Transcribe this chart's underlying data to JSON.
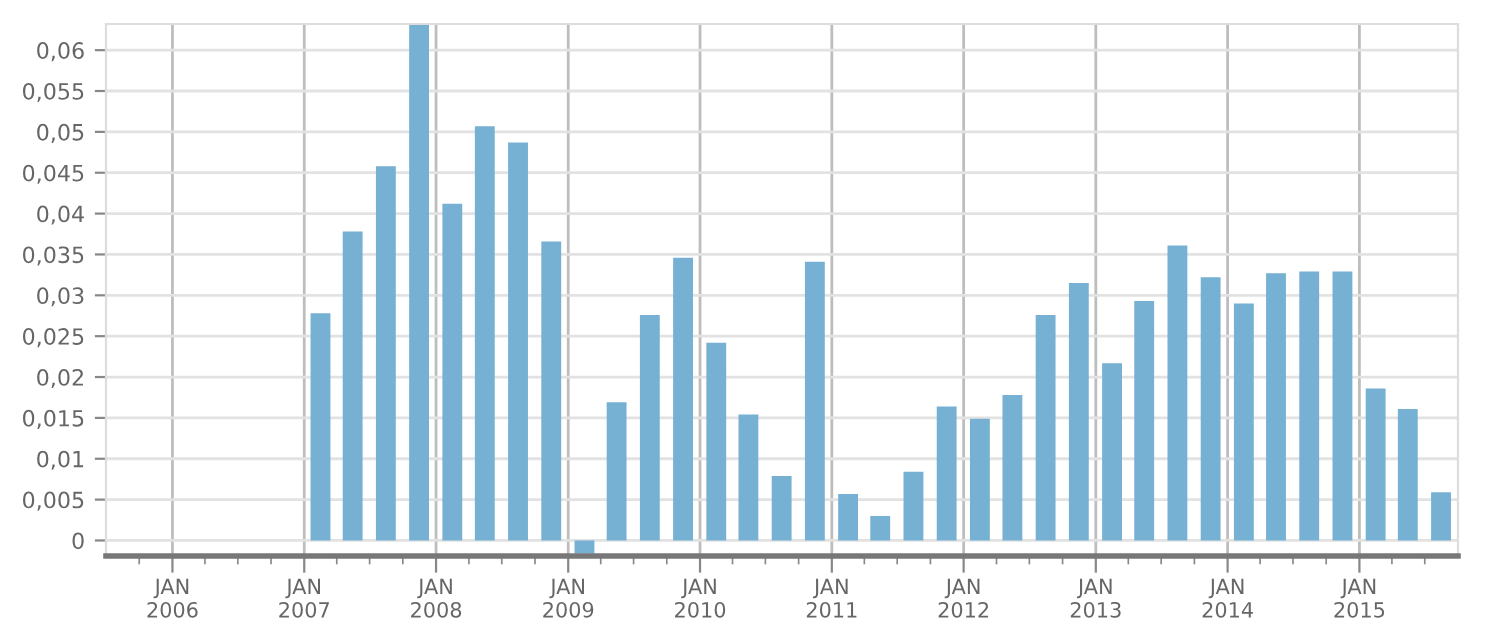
{
  "chart_data": {
    "type": "bar",
    "x": [
      "2007-02-15",
      "2007-05-15",
      "2007-08-15",
      "2007-11-15",
      "2008-02-15",
      "2008-05-15",
      "2008-08-15",
      "2008-11-15",
      "2009-02-15",
      "2009-05-15",
      "2009-08-15",
      "2009-11-15",
      "2010-02-15",
      "2010-05-15",
      "2010-08-15",
      "2010-11-15",
      "2011-02-15",
      "2011-05-15",
      "2011-08-15",
      "2011-11-15",
      "2012-02-15",
      "2012-05-15",
      "2012-08-15",
      "2012-11-15",
      "2013-02-15",
      "2013-05-15",
      "2013-08-15",
      "2013-11-15",
      "2014-02-15",
      "2014-05-15",
      "2014-08-15",
      "2014-11-15",
      "2015-02-15",
      "2015-05-15",
      "2015-08-15"
    ],
    "values": [
      0.0278,
      0.0378,
      0.0458,
      0.0631,
      0.0412,
      0.0507,
      0.0487,
      0.0366,
      -0.0016,
      0.0169,
      0.0276,
      0.0346,
      0.0242,
      0.0154,
      0.0079,
      0.0341,
      0.0057,
      0.003,
      0.0084,
      0.0164,
      0.0149,
      0.0178,
      0.0276,
      0.0315,
      0.0217,
      0.0293,
      0.0361,
      0.0322,
      0.029,
      0.0327,
      0.0329,
      0.0329,
      0.0186,
      0.0161,
      0.0059
    ],
    "color": "#76b0d3",
    "ylim": [
      -0.0019,
      0.0632
    ],
    "yticks": [
      0,
      {
        "value": 0.005,
        "label": "0,005"
      },
      {
        "value": 0.01,
        "label": "0,01"
      },
      {
        "value": 0.015,
        "label": "0,015"
      },
      {
        "value": 0.02,
        "label": "0,02"
      },
      {
        "value": 0.025,
        "label": "0,025"
      },
      {
        "value": 0.03,
        "label": "0,03"
      },
      {
        "value": 0.035,
        "label": "0,035"
      },
      {
        "value": 0.04,
        "label": "0,04"
      },
      {
        "value": 0.045,
        "label": "0,045"
      },
      {
        "value": 0.05,
        "label": "0,05"
      },
      {
        "value": 0.055,
        "label": "0,055"
      },
      {
        "value": 0.06,
        "label": "0,06"
      }
    ],
    "xlim": [
      "2005-07-01",
      "2015-10-01"
    ],
    "xticks": [
      {
        "value": "2005-10-01",
        "label": null
      },
      {
        "value": "2006-01-01",
        "label": "JAN\n2006"
      },
      {
        "value": "2006-04-01",
        "label": null
      },
      {
        "value": "2006-07-01",
        "label": null
      },
      {
        "value": "2006-10-01",
        "label": null
      },
      {
        "value": "2007-01-01",
        "label": "JAN\n2007"
      },
      {
        "value": "2007-04-01",
        "label": null
      },
      {
        "value": "2007-07-01",
        "label": null
      },
      {
        "value": "2007-10-01",
        "label": null
      },
      {
        "value": "2008-01-01",
        "label": "JAN\n2008"
      },
      {
        "value": "2008-04-01",
        "label": null
      },
      {
        "value": "2008-07-01",
        "label": null
      },
      {
        "value": "2008-10-01",
        "label": null
      },
      {
        "value": "2009-01-01",
        "label": "JAN\n2009"
      },
      {
        "value": "2009-04-01",
        "label": null
      },
      {
        "value": "2009-07-01",
        "label": null
      },
      {
        "value": "2009-10-01",
        "label": null
      },
      {
        "value": "2010-01-01",
        "label": "JAN\n2010"
      },
      {
        "value": "2010-04-01",
        "label": null
      },
      {
        "value": "2010-07-01",
        "label": null
      },
      {
        "value": "2010-10-01",
        "label": null
      },
      {
        "value": "2011-01-01",
        "label": "JAN\n2011"
      },
      {
        "value": "2011-04-01",
        "label": null
      },
      {
        "value": "2011-07-01",
        "label": null
      },
      {
        "value": "2011-10-01",
        "label": null
      },
      {
        "value": "2012-01-01",
        "label": "JAN\n2012"
      },
      {
        "value": "2012-04-01",
        "label": null
      },
      {
        "value": "2012-07-01",
        "label": null
      },
      {
        "value": "2012-10-01",
        "label": null
      },
      {
        "value": "2013-01-01",
        "label": "JAN\n2013"
      },
      {
        "value": "2013-04-01",
        "label": null
      },
      {
        "value": "2013-07-01",
        "label": null
      },
      {
        "value": "2013-10-01",
        "label": null
      },
      {
        "value": "2014-01-01",
        "label": "JAN\n2014"
      },
      {
        "value": "2014-04-01",
        "label": null
      },
      {
        "value": "2014-07-01",
        "label": null
      },
      {
        "value": "2014-10-01",
        "label": null
      },
      {
        "value": "2015-01-01",
        "label": "JAN\n2015"
      },
      {
        "value": "2015-04-01",
        "label": null
      },
      {
        "value": "2015-07-01",
        "label": null
      }
    ],
    "grid": true
  }
}
